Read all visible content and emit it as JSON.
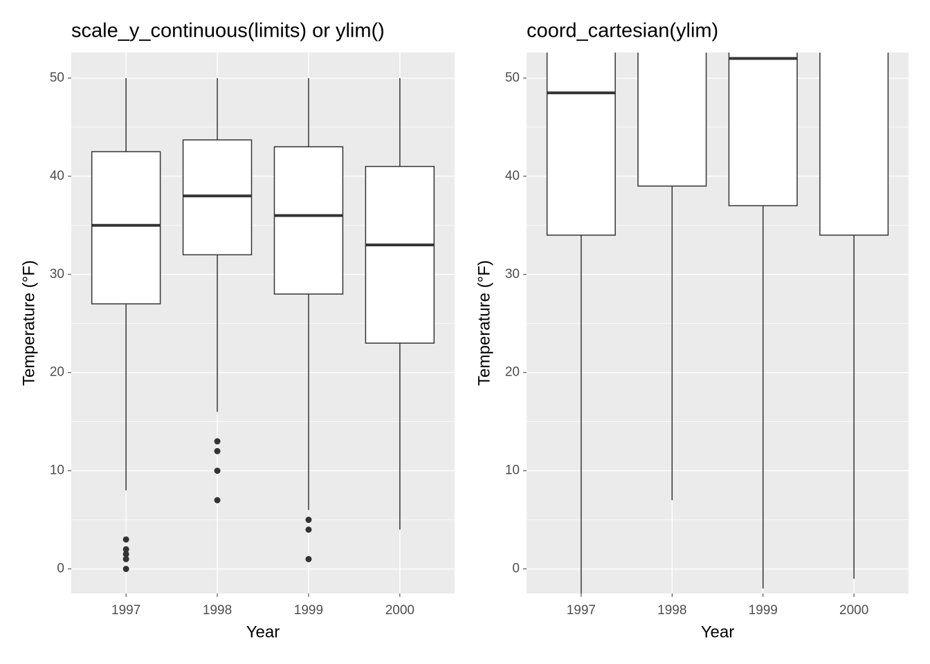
{
  "chart_data": [
    {
      "type": "box",
      "title": "scale_y_continuous(limits) or ylim()",
      "xlabel": "Year",
      "ylabel": "Temperature (°F)",
      "categories": [
        "1997",
        "1998",
        "1999",
        "2000"
      ],
      "low": [
        8,
        16,
        6,
        4
      ],
      "q1": [
        27,
        32,
        28,
        23
      ],
      "median": [
        35,
        38,
        36,
        33
      ],
      "q3": [
        42.5,
        43.7,
        43,
        41
      ],
      "high": [
        50,
        50,
        50,
        50
      ],
      "outliers": [
        [
          3,
          2,
          1.5,
          1,
          0
        ],
        [
          13,
          12,
          10,
          7
        ],
        [
          5,
          4,
          1
        ],
        []
      ],
      "ylim": [
        -2.5,
        52.6
      ],
      "yticks": [
        0,
        10,
        20,
        30,
        40,
        50
      ],
      "grid": true
    },
    {
      "type": "box",
      "title": "coord_cartesian(ylim)",
      "xlabel": "Year",
      "ylabel": "Temperature (°F)",
      "categories": [
        "1997",
        "1998",
        "1999",
        "2000"
      ],
      "low": [
        null,
        7,
        -2,
        -1
      ],
      "q1": [
        34,
        39,
        37,
        34
      ],
      "median": [
        48.5,
        null,
        52,
        null
      ],
      "q3": [
        null,
        null,
        null,
        null
      ],
      "high": [
        null,
        null,
        null,
        null
      ],
      "outliers": [
        [],
        [],
        [],
        []
      ],
      "ylim": [
        -2.5,
        52.6
      ],
      "yticks": [
        0,
        10,
        20,
        30,
        40,
        50
      ],
      "grid": true
    }
  ]
}
